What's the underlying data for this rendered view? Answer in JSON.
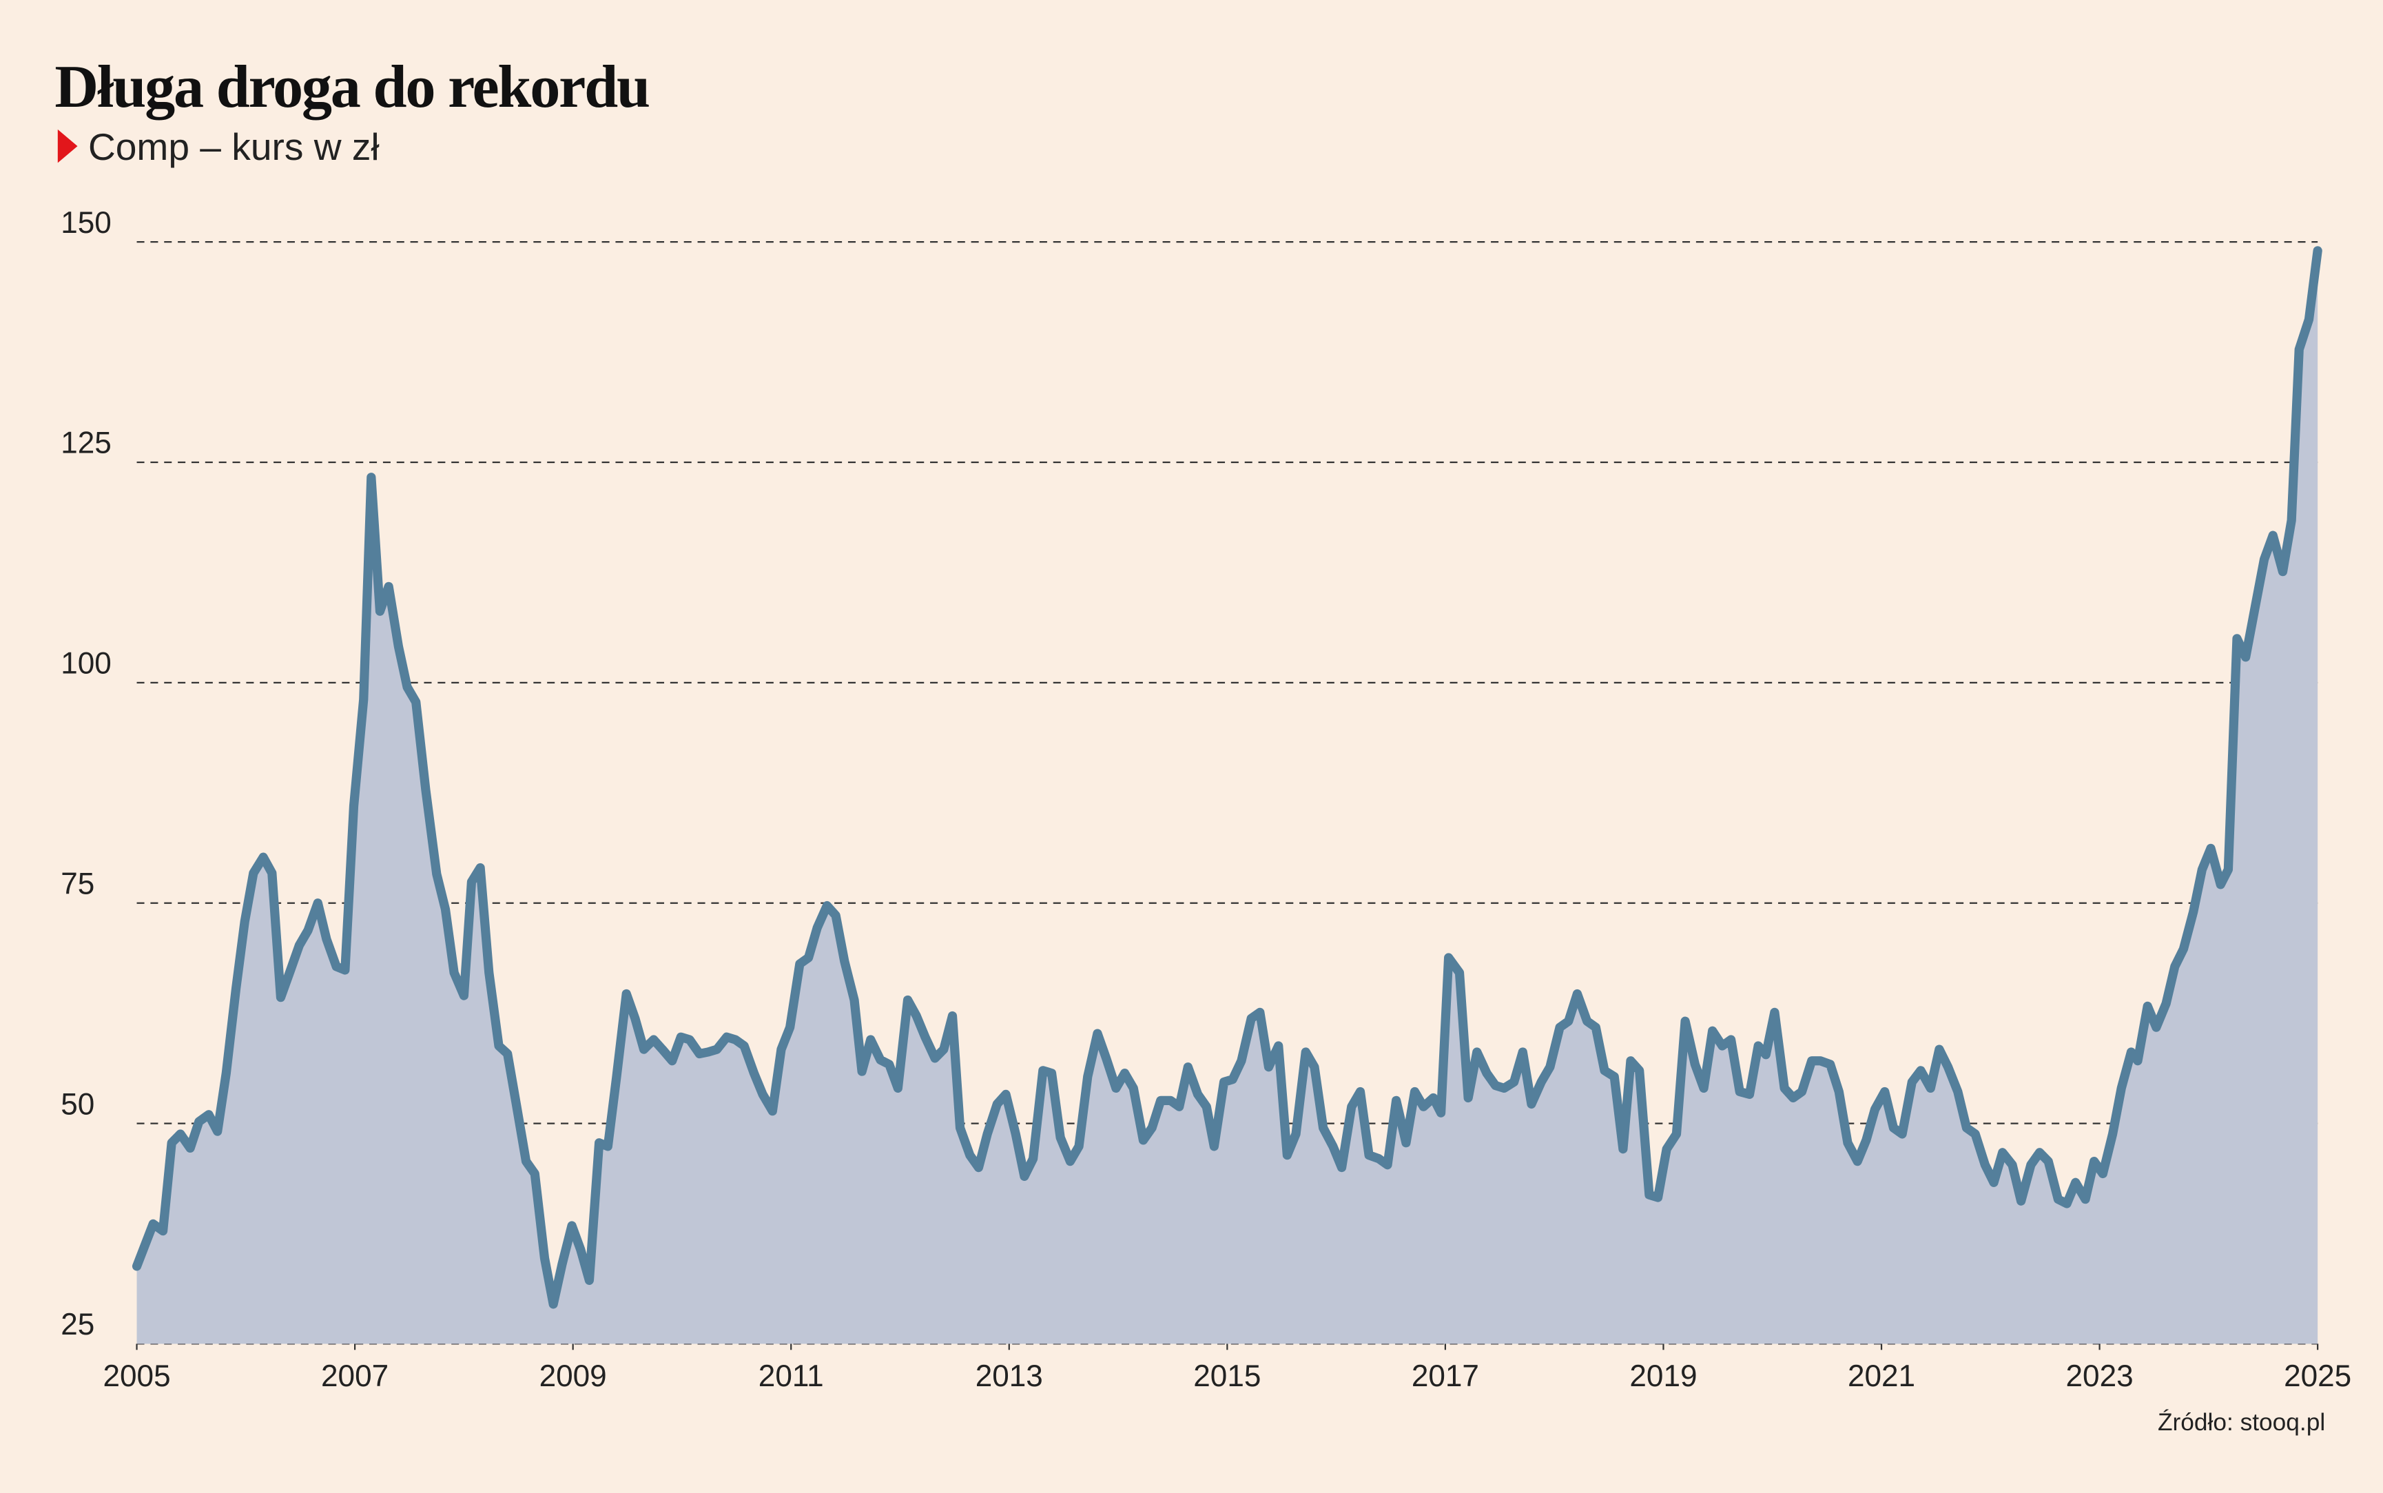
{
  "chart_data": {
    "type": "area",
    "title": "Długa droga do rekordu",
    "subtitle": "Comp – kurs w zł",
    "source": "Źródło: stooq.pl",
    "line_color": "#547f9b",
    "fill_color": "#c0c6d6",
    "grid": true,
    "xlim": [
      2005,
      2025
    ],
    "xticks": [
      2005,
      2007,
      2009,
      2011,
      2013,
      2015,
      2017,
      2019,
      2021,
      2023,
      2025
    ],
    "ylim": [
      25,
      150
    ],
    "yticks": [
      25,
      50,
      75,
      100,
      125,
      150
    ],
    "series": [
      {
        "name": "Comp",
        "x": [
          2005.0,
          2005.15,
          2005.24,
          2005.32,
          2005.4,
          2005.49,
          2005.57,
          2005.66,
          2005.74,
          2005.82,
          2005.91,
          2005.99,
          2006.07,
          2006.16,
          2006.24,
          2006.32,
          2006.41,
          2006.49,
          2006.57,
          2006.66,
          2006.74,
          2006.83,
          2006.91,
          2006.99,
          2007.08,
          2007.15,
          2007.23,
          2007.31,
          2007.4,
          2007.48,
          2007.56,
          2007.65,
          2007.75,
          2007.83,
          2007.91,
          2008.0,
          2008.07,
          2008.15,
          2008.23,
          2008.32,
          2008.4,
          2008.48,
          2008.57,
          2008.65,
          2008.74,
          2008.82,
          2008.9,
          2008.99,
          2009.07,
          2009.15,
          2009.24,
          2009.32,
          2009.4,
          2009.49,
          2009.57,
          2009.65,
          2009.74,
          2009.82,
          2009.91,
          2009.99,
          2010.07,
          2010.16,
          2010.24,
          2010.32,
          2010.41,
          2010.49,
          2010.57,
          2010.66,
          2010.74,
          2010.83,
          2010.91,
          2010.99,
          2011.08,
          2011.16,
          2011.24,
          2011.33,
          2011.41,
          2011.49,
          2011.58,
          2011.65,
          2011.73,
          2011.82,
          2011.9,
          2011.98,
          2012.07,
          2012.15,
          2012.23,
          2012.32,
          2012.4,
          2012.48,
          2012.55,
          2012.64,
          2012.72,
          2012.8,
          2012.89,
          2012.97,
          2013.06,
          2013.14,
          2013.22,
          2013.31,
          2013.39,
          2013.47,
          2013.56,
          2013.64,
          2013.72,
          2013.81,
          2013.89,
          2013.98,
          2014.06,
          2014.14,
          2014.23,
          2014.31,
          2014.39,
          2014.48,
          2014.56,
          2014.64,
          2014.73,
          2014.81,
          2014.88,
          2014.97,
          2015.05,
          2015.13,
          2015.22,
          2015.3,
          2015.38,
          2015.47,
          2015.55,
          2015.63,
          2015.72,
          2015.8,
          2015.88,
          2015.97,
          2016.05,
          2016.14,
          2016.22,
          2016.3,
          2016.39,
          2016.47,
          2016.55,
          2016.64,
          2016.72,
          2016.8,
          2016.89,
          2016.96,
          2017.03,
          2017.13,
          2017.21,
          2017.29,
          2017.38,
          2017.46,
          2017.54,
          2017.63,
          2017.71,
          2017.79,
          2017.88,
          2017.96,
          2018.05,
          2018.13,
          2018.21,
          2018.3,
          2018.38,
          2018.46,
          2018.55,
          2018.63,
          2018.7,
          2018.78,
          2018.87,
          2018.95,
          2019.03,
          2019.12,
          2019.2,
          2019.29,
          2019.37,
          2019.45,
          2019.54,
          2019.62,
          2019.7,
          2019.79,
          2019.87,
          2019.94,
          2020.02,
          2020.11,
          2020.19,
          2020.27,
          2020.36,
          2020.44,
          2020.53,
          2020.61,
          2020.69,
          2020.78,
          2020.86,
          2020.94,
          2021.03,
          2021.11,
          2021.19,
          2021.28,
          2021.36,
          2021.45,
          2021.53,
          2021.61,
          2021.7,
          2021.78,
          2021.86,
          2021.95,
          2022.03,
          2022.11,
          2022.2,
          2022.28,
          2022.37,
          2022.45,
          2022.53,
          2022.62,
          2022.7,
          2022.78,
          2022.87,
          2022.95,
          2023.03,
          2023.12,
          2023.2,
          2023.29,
          2023.35,
          2023.44,
          2023.52,
          2023.61,
          2023.69,
          2023.77,
          2023.86,
          2023.94,
          2024.02,
          2024.11,
          2024.18,
          2024.26,
          2024.34,
          2024.43,
          2024.51,
          2024.59,
          2024.68,
          2024.76,
          2024.83,
          2024.92,
          2025.0
        ],
        "values": [
          33.8,
          38.6,
          37.8,
          47.8,
          48.8,
          47.2,
          50.2,
          51.0,
          49.1,
          55.7,
          65.3,
          72.9,
          78.4,
          80.2,
          78.4,
          64.3,
          67.4,
          70.2,
          71.9,
          75.0,
          70.9,
          67.8,
          67.4,
          86.0,
          98.1,
          123.3,
          108.1,
          110.9,
          104.1,
          99.5,
          97.8,
          87.8,
          78.3,
          74.3,
          67.1,
          64.5,
          77.4,
          79.0,
          67.1,
          58.8,
          57.9,
          52.2,
          45.7,
          44.3,
          34.7,
          29.5,
          34.0,
          38.4,
          35.7,
          32.2,
          47.8,
          47.4,
          55.3,
          64.7,
          61.9,
          58.4,
          59.5,
          58.4,
          57.1,
          59.8,
          59.5,
          57.9,
          58.1,
          58.4,
          59.8,
          59.5,
          58.8,
          55.7,
          53.3,
          51.4,
          58.4,
          60.9,
          68.1,
          68.8,
          72.2,
          74.7,
          73.6,
          68.4,
          64.0,
          55.9,
          59.5,
          57.2,
          56.7,
          54.0,
          64.0,
          62.2,
          59.8,
          57.4,
          58.4,
          62.2,
          49.5,
          46.4,
          45.0,
          48.8,
          52.2,
          53.3,
          48.8,
          44.0,
          46.0,
          56.0,
          55.7,
          48.4,
          45.7,
          47.4,
          55.3,
          60.2,
          57.4,
          54.0,
          55.7,
          54.0,
          48.1,
          49.5,
          52.6,
          52.6,
          51.9,
          56.4,
          53.3,
          51.9,
          47.4,
          54.7,
          55.0,
          57.1,
          61.9,
          62.6,
          56.4,
          58.8,
          46.4,
          48.8,
          58.1,
          56.4,
          49.5,
          47.4,
          45.0,
          51.9,
          53.6,
          46.4,
          46.0,
          45.3,
          52.6,
          47.8,
          53.6,
          51.9,
          52.9,
          51.2,
          68.8,
          67.1,
          52.9,
          58.1,
          55.7,
          54.3,
          54.0,
          54.7,
          58.1,
          52.2,
          54.7,
          56.4,
          60.9,
          61.6,
          64.7,
          61.6,
          60.9,
          56.0,
          55.3,
          47.1,
          57.1,
          56.0,
          41.9,
          41.6,
          47.1,
          48.8,
          61.6,
          56.7,
          54.0,
          60.5,
          58.8,
          59.5,
          53.6,
          53.3,
          58.8,
          57.8,
          62.6,
          54.0,
          52.9,
          53.6,
          57.1,
          57.1,
          56.7,
          53.6,
          47.8,
          45.7,
          48.1,
          51.6,
          53.6,
          49.5,
          48.8,
          54.7,
          56.0,
          54.0,
          58.4,
          56.4,
          53.6,
          49.5,
          48.8,
          45.3,
          43.3,
          46.7,
          45.3,
          41.2,
          45.3,
          46.7,
          45.7,
          41.4,
          40.9,
          43.3,
          41.4,
          45.7,
          44.3,
          48.8,
          54.0,
          58.1,
          57.1,
          63.3,
          60.9,
          63.6,
          67.8,
          69.8,
          74.0,
          78.8,
          81.2,
          77.1,
          78.8,
          105.0,
          102.9,
          108.8,
          114.0,
          116.7,
          112.6,
          118.4,
          137.8,
          141.2,
          149.0
        ]
      }
    ]
  }
}
